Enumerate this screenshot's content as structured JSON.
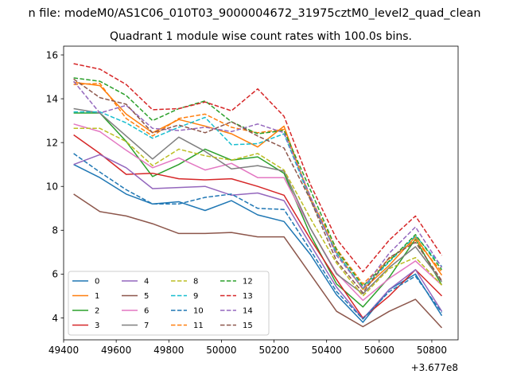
{
  "suptitle": "n file: modeM0/AS1C06_010T03_9000004672_31975cztM0_level2_quad_clean",
  "chart_data": {
    "type": "line",
    "title": "Quadrant 1 module wise count rates with 100.0s bins.",
    "xlabel": "",
    "ylabel": "",
    "x_offset_label": "+3.677e8",
    "x": [
      49438,
      49538,
      49638,
      49738,
      49838,
      49938,
      50038,
      50138,
      50238,
      50338,
      50438,
      50538,
      50638,
      50738,
      50838
    ],
    "x_ticks": [
      49400,
      49600,
      49800,
      50000,
      50200,
      50400,
      50600,
      50800
    ],
    "x_tick_labels": [
      "49400",
      "49600",
      "49800",
      "50000",
      "50200",
      "50400",
      "50600",
      "50800"
    ],
    "y_ticks": [
      4,
      6,
      8,
      10,
      12,
      14,
      16
    ],
    "y_tick_labels": [
      "4",
      "6",
      "8",
      "10",
      "12",
      "14",
      "16"
    ],
    "xlim": [
      49400,
      50900
    ],
    "ylim": [
      3.0,
      16.4
    ],
    "grid": false,
    "legend_position": "lower-left",
    "series": [
      {
        "name": "0",
        "color": "#1f77b4",
        "dash": "solid",
        "values": [
          11.0,
          10.4,
          9.65,
          9.2,
          9.3,
          8.9,
          9.35,
          8.7,
          8.4,
          6.9,
          5.05,
          3.8,
          5.3,
          6.0,
          4.1
        ]
      },
      {
        "name": "1",
        "color": "#ff7f0e",
        "dash": "solid",
        "values": [
          14.75,
          14.6,
          13.3,
          12.45,
          13.05,
          12.75,
          12.4,
          11.8,
          12.75,
          9.4,
          7.0,
          5.3,
          6.4,
          7.7,
          5.95
        ]
      },
      {
        "name": "2",
        "color": "#2ca02c",
        "dash": "solid",
        "values": [
          13.35,
          13.35,
          12.05,
          10.45,
          11.0,
          11.7,
          11.2,
          11.35,
          10.6,
          7.8,
          5.55,
          4.5,
          5.85,
          7.6,
          5.5
        ]
      },
      {
        "name": "3",
        "color": "#d62728",
        "dash": "solid",
        "values": [
          12.35,
          11.5,
          10.55,
          10.6,
          10.35,
          10.3,
          10.35,
          10.0,
          9.6,
          7.6,
          5.75,
          4.0,
          5.0,
          6.2,
          5.0
        ]
      },
      {
        "name": "4",
        "color": "#9467bd",
        "dash": "solid",
        "values": [
          11.0,
          11.45,
          10.85,
          9.9,
          9.95,
          10.0,
          9.6,
          9.7,
          9.35,
          7.35,
          5.4,
          3.95,
          5.3,
          6.2,
          4.3
        ]
      },
      {
        "name": "5",
        "color": "#8c564b",
        "dash": "solid",
        "values": [
          9.65,
          8.85,
          8.65,
          8.3,
          7.85,
          7.85,
          7.9,
          7.7,
          7.7,
          6.0,
          4.3,
          3.6,
          4.3,
          4.85,
          3.55
        ]
      },
      {
        "name": "6",
        "color": "#e377c2",
        "dash": "solid",
        "values": [
          12.85,
          12.5,
          11.65,
          10.85,
          11.3,
          10.75,
          11.05,
          10.4,
          10.4,
          8.1,
          6.05,
          4.8,
          5.8,
          6.6,
          5.5
        ]
      },
      {
        "name": "7",
        "color": "#7f7f7f",
        "dash": "solid",
        "values": [
          13.55,
          13.35,
          12.3,
          11.25,
          12.25,
          11.6,
          10.8,
          10.95,
          10.7,
          8.1,
          6.0,
          5.1,
          6.3,
          7.25,
          5.65
        ]
      },
      {
        "name": "8",
        "color": "#bcbd22",
        "dash": "dashed",
        "values": [
          12.65,
          12.65,
          12.05,
          10.95,
          11.7,
          11.4,
          11.2,
          11.5,
          10.75,
          8.55,
          6.5,
          5.0,
          6.25,
          6.75,
          5.5
        ]
      },
      {
        "name": "9",
        "color": "#17becf",
        "dash": "dashed",
        "values": [
          13.4,
          13.4,
          12.9,
          12.2,
          12.7,
          13.15,
          11.9,
          11.95,
          12.4,
          9.4,
          6.95,
          5.35,
          6.55,
          7.75,
          6.35
        ]
      },
      {
        "name": "10",
        "color": "#1f77b4",
        "dash": "dashed",
        "values": [
          11.5,
          10.65,
          9.85,
          9.2,
          9.2,
          9.5,
          9.65,
          9.0,
          8.95,
          7.1,
          5.2,
          3.95,
          5.2,
          5.9,
          4.25
        ]
      },
      {
        "name": "11",
        "color": "#ff7f0e",
        "dash": "dashed",
        "values": [
          14.65,
          14.7,
          13.1,
          12.3,
          13.1,
          13.3,
          12.7,
          12.45,
          12.6,
          9.5,
          7.15,
          5.55,
          6.7,
          7.55,
          6.1
        ]
      },
      {
        "name": "12",
        "color": "#2ca02c",
        "dash": "dashed",
        "values": [
          14.95,
          14.8,
          14.15,
          13.0,
          13.55,
          13.9,
          12.95,
          12.4,
          12.55,
          9.85,
          7.1,
          5.45,
          6.6,
          7.8,
          6.2
        ]
      },
      {
        "name": "13",
        "color": "#d62728",
        "dash": "dashed",
        "values": [
          15.6,
          15.35,
          14.65,
          13.5,
          13.55,
          13.85,
          13.45,
          14.45,
          13.2,
          10.1,
          7.6,
          6.1,
          7.55,
          8.65,
          6.85
        ]
      },
      {
        "name": "14",
        "color": "#9467bd",
        "dash": "dashed",
        "values": [
          14.8,
          13.35,
          13.7,
          12.65,
          12.55,
          12.7,
          12.5,
          12.85,
          12.45,
          9.55,
          6.85,
          5.35,
          6.95,
          8.15,
          6.3
        ]
      },
      {
        "name": "15",
        "color": "#8c564b",
        "dash": "dashed",
        "values": [
          14.9,
          14.05,
          13.75,
          12.45,
          12.8,
          12.45,
          12.95,
          12.3,
          11.75,
          9.4,
          6.6,
          5.15,
          6.75,
          7.45,
          5.7
        ]
      }
    ]
  }
}
